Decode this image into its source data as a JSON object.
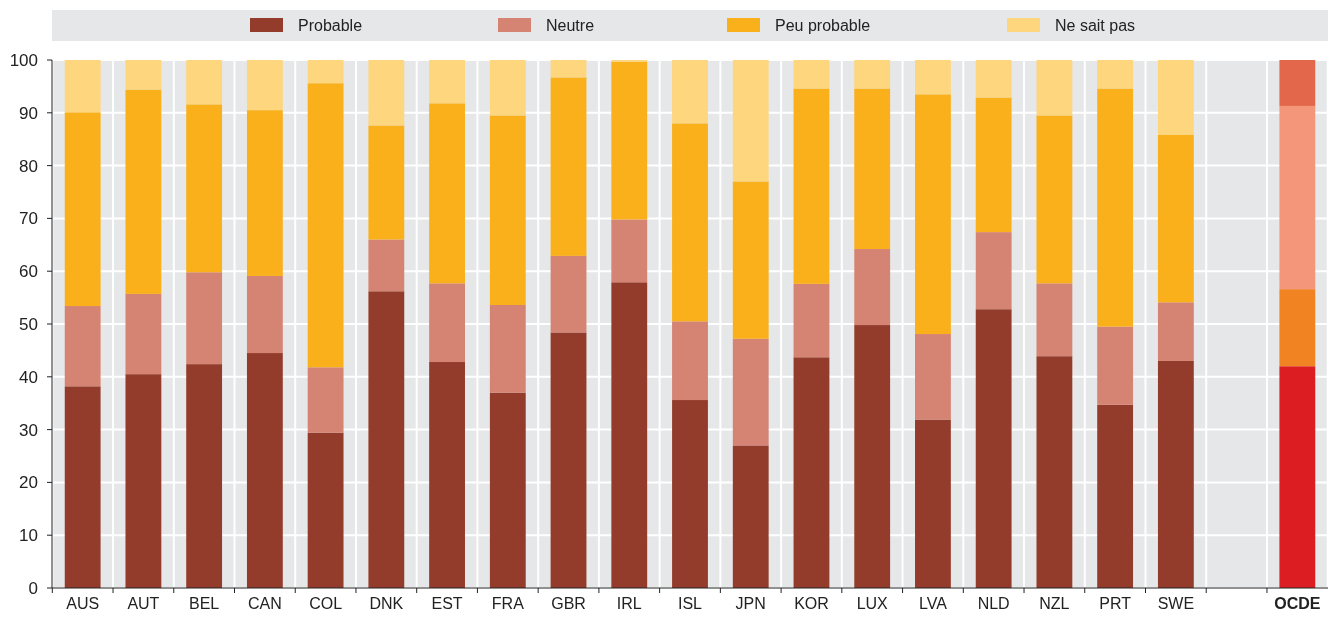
{
  "chart_data": {
    "type": "bar",
    "stacked": true,
    "categories": [
      "AUS",
      "AUT",
      "BEL",
      "CAN",
      "COL",
      "DNK",
      "EST",
      "FRA",
      "GBR",
      "IRL",
      "ISL",
      "JPN",
      "KOR",
      "LUX",
      "LVA",
      "NLD",
      "NZL",
      "PRT",
      "SWE",
      null,
      "OCDE"
    ],
    "series": [
      {
        "name": "Probable",
        "color": "#943c2b",
        "colors": [
          "#943c2b",
          "#943c2b",
          "#943c2b",
          "#943c2b",
          "#943c2b",
          "#943c2b",
          "#943c2b",
          "#943c2b",
          "#943c2b",
          "#943c2b",
          "#943c2b",
          "#943c2b",
          "#943c2b",
          "#943c2b",
          "#943c2b",
          "#943c2b",
          "#943c2b",
          "#943c2b",
          "#943c2b",
          null,
          "#dc1e23"
        ],
        "values": [
          38.2,
          40.5,
          42.4,
          44.5,
          29.4,
          56.2,
          42.8,
          37.0,
          48.4,
          57.9,
          35.6,
          27.0,
          43.7,
          49.8,
          31.9,
          52.8,
          43.9,
          34.7,
          43.0,
          null,
          42.0
        ]
      },
      {
        "name": "Neutre",
        "color": "#d58373",
        "colors": [
          "#d58373",
          "#d58373",
          "#d58373",
          "#d58373",
          "#d58373",
          "#d58373",
          "#d58373",
          "#d58373",
          "#d58373",
          "#d58373",
          "#d58373",
          "#d58373",
          "#d58373",
          "#d58373",
          "#d58373",
          "#d58373",
          "#d58373",
          "#d58373",
          "#d58373",
          null,
          "#f28322"
        ],
        "values": [
          15.2,
          15.2,
          17.4,
          14.6,
          12.4,
          9.8,
          14.9,
          16.6,
          14.5,
          11.9,
          14.9,
          20.2,
          13.9,
          14.4,
          16.2,
          14.6,
          13.8,
          14.8,
          11.1,
          null,
          14.6
        ]
      },
      {
        "name": "Peu probable",
        "color": "#f9b01b",
        "colors": [
          "#f9b01b",
          "#f9b01b",
          "#f9b01b",
          "#f9b01b",
          "#f9b01b",
          "#f9b01b",
          "#f9b01b",
          "#f9b01b",
          "#f9b01b",
          "#f9b01b",
          "#f9b01b",
          "#f9b01b",
          "#f9b01b",
          "#f9b01b",
          "#f9b01b",
          "#f9b01b",
          "#f9b01b",
          "#f9b01b",
          "#f9b01b",
          null,
          "#f4967a"
        ],
        "values": [
          36.7,
          38.7,
          31.8,
          31.4,
          53.8,
          21.6,
          34.1,
          35.9,
          33.8,
          29.9,
          37.5,
          29.8,
          37.0,
          30.4,
          45.4,
          25.5,
          31.8,
          45.1,
          31.7,
          null,
          34.7
        ]
      },
      {
        "name": "Ne sait pas",
        "color": "#fdd67e",
        "colors": [
          "#fdd67e",
          "#fdd67e",
          "#fdd67e",
          "#fdd67e",
          "#fdd67e",
          "#fdd67e",
          "#fdd67e",
          "#fdd67e",
          "#fdd67e",
          "#fdd67e",
          "#fdd67e",
          "#fdd67e",
          "#fdd67e",
          "#fdd67e",
          "#fdd67e",
          "#fdd67e",
          "#fdd67e",
          "#fdd67e",
          "#fdd67e",
          null,
          "#e3684b"
        ],
        "values": [
          9.9,
          5.6,
          8.4,
          9.5,
          4.4,
          12.4,
          8.2,
          10.5,
          3.3,
          0.3,
          12.0,
          23.0,
          5.4,
          5.4,
          6.5,
          7.1,
          10.5,
          5.4,
          14.2,
          null,
          8.7
        ]
      }
    ],
    "ylim": [
      0,
      100
    ],
    "yticks": [
      0,
      10,
      20,
      30,
      40,
      50,
      60,
      70,
      80,
      90,
      100
    ],
    "grid": true,
    "legend": "top"
  }
}
